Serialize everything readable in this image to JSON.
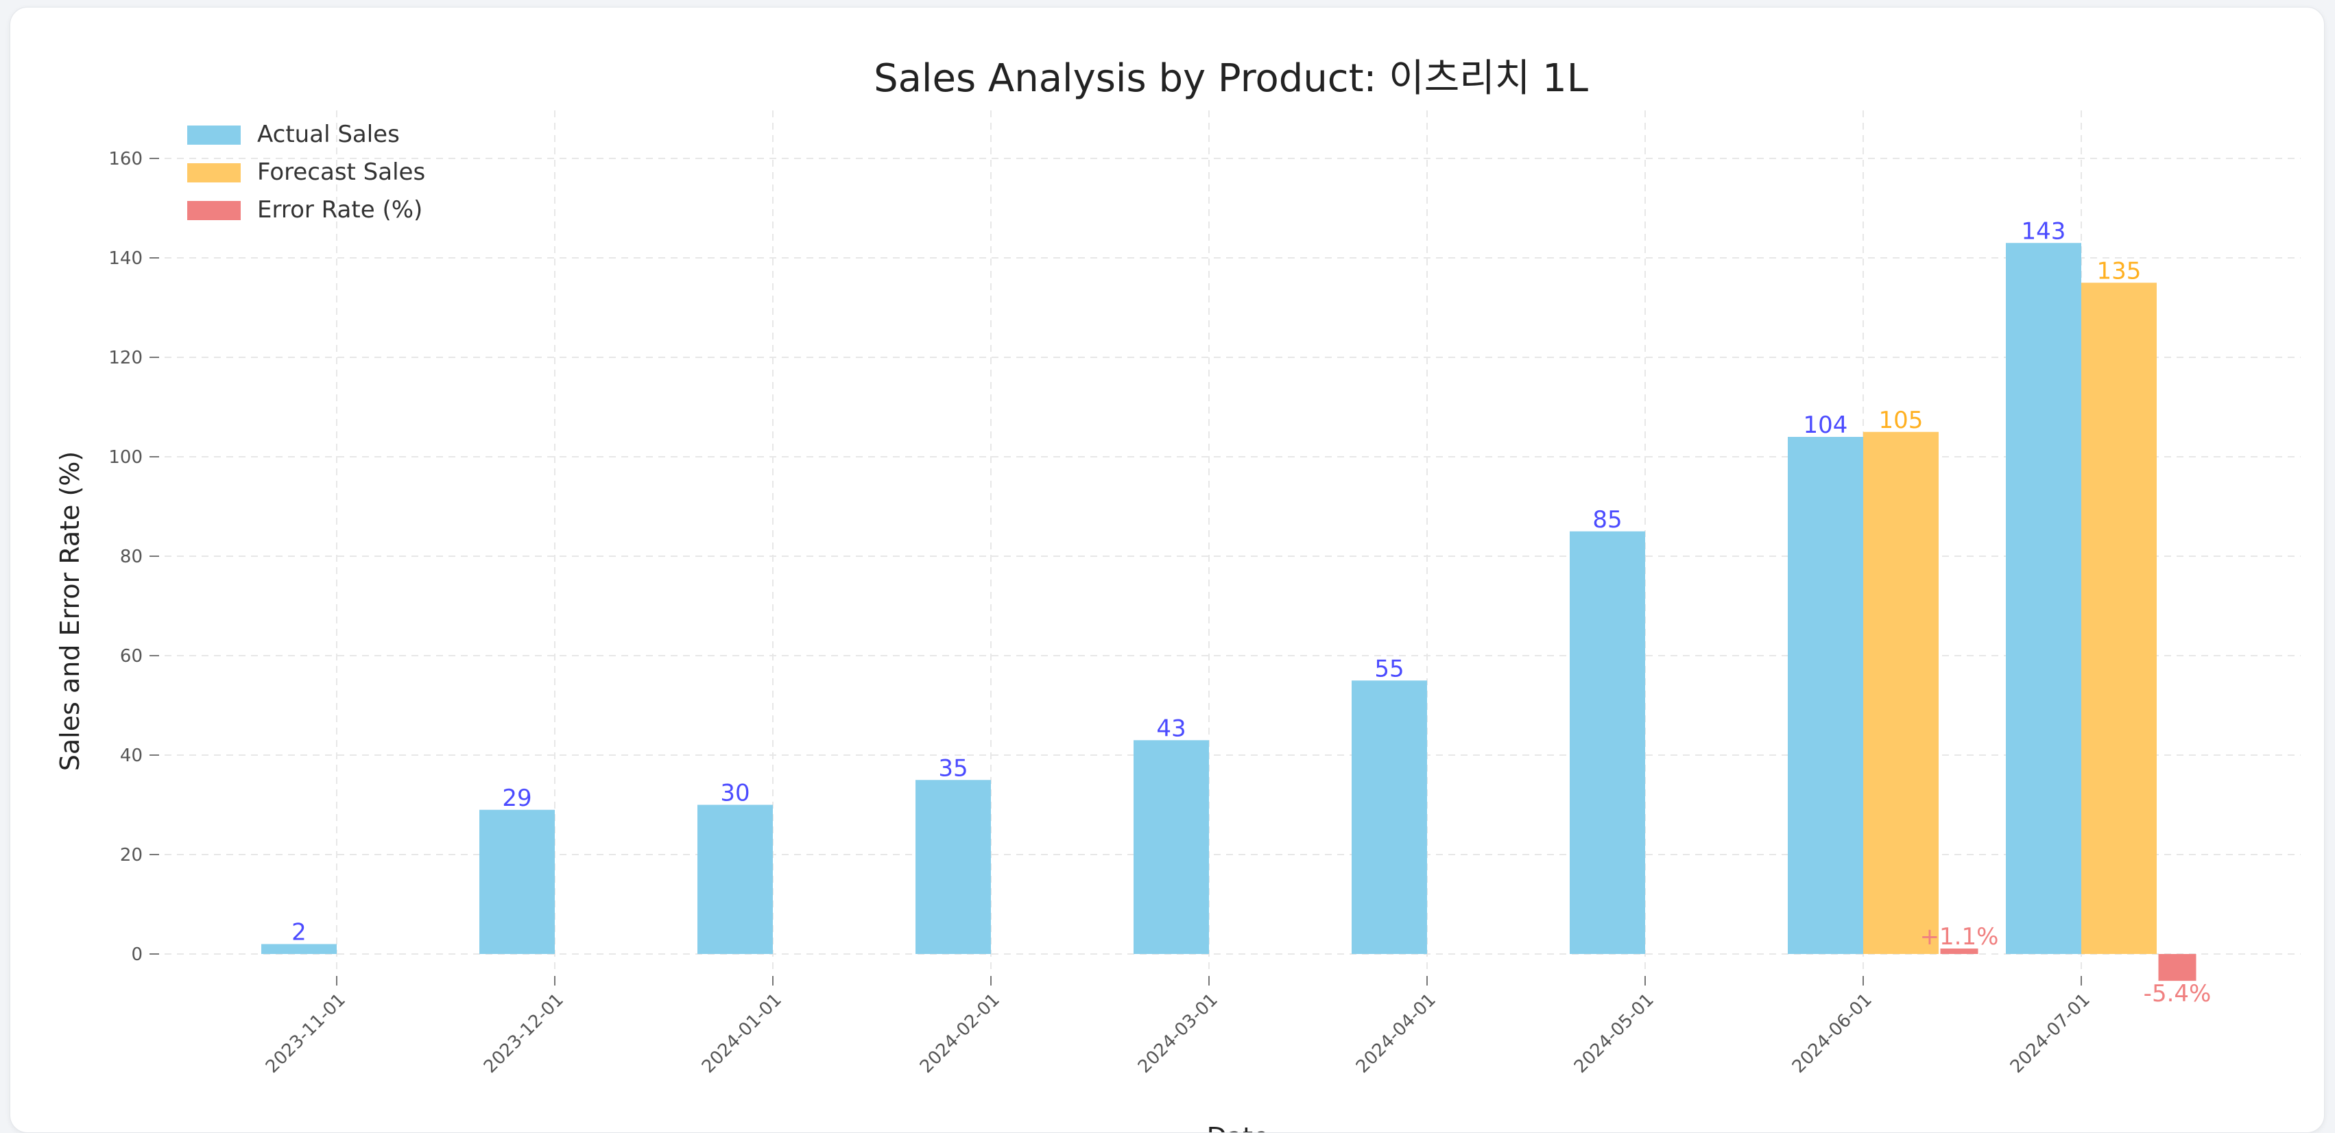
{
  "chart_data": {
    "type": "bar",
    "title": "Sales Analysis by Product: 이츠리치 1L",
    "xlabel": "Date",
    "ylabel": "Sales and Error Rate (%)",
    "categories": [
      "2023-11-01",
      "2023-12-01",
      "2024-01-01",
      "2024-02-01",
      "2024-03-01",
      "2024-04-01",
      "2024-05-01",
      "2024-06-01",
      "2024-07-01"
    ],
    "ylim": [
      -5,
      170
    ],
    "yticks": [
      0,
      20,
      40,
      60,
      80,
      100,
      120,
      140,
      160
    ],
    "grid": true,
    "legend_position": "top-left",
    "series": [
      {
        "name": "Actual Sales",
        "color": "#87ceeb",
        "label_color": "#4b4bff",
        "values": [
          2,
          29,
          30,
          35,
          43,
          55,
          85,
          104,
          143
        ],
        "labels": [
          "2",
          "29",
          "30",
          "35",
          "43",
          "55",
          "85",
          "104",
          "143"
        ]
      },
      {
        "name": "Forecast Sales",
        "color": "#ffc966",
        "label_color": "#ffb020",
        "values": [
          null,
          null,
          null,
          null,
          null,
          null,
          null,
          105,
          135
        ],
        "labels": [
          null,
          null,
          null,
          null,
          null,
          null,
          null,
          "105",
          "135"
        ]
      },
      {
        "name": "Error Rate (%)",
        "color": "#f08080",
        "label_color": "#f08080",
        "values": [
          null,
          null,
          null,
          null,
          null,
          null,
          null,
          1.1,
          -5.4
        ],
        "labels": [
          null,
          null,
          null,
          null,
          null,
          null,
          null,
          "+1.1%",
          "-5.4%"
        ]
      }
    ]
  }
}
